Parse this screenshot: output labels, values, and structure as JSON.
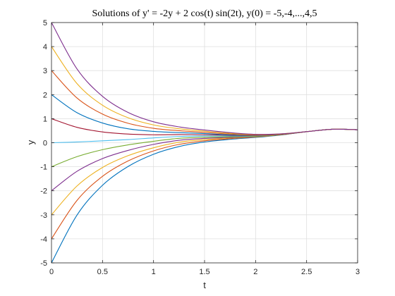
{
  "chart_data": {
    "type": "line",
    "title": "Solutions of y' = -2y + 2 cos(t) sin(2t), y(0) = -5,-4,...,4,5",
    "xlabel": "t",
    "ylabel": "y",
    "xlim": [
      0,
      3
    ],
    "ylim": [
      -5,
      5
    ],
    "xticks": [
      0,
      0.5,
      1,
      1.5,
      2,
      2.5,
      3
    ],
    "xtick_labels": [
      "0",
      "0.5",
      "1",
      "1.5",
      "2",
      "2.5",
      "3"
    ],
    "yticks": [
      -5,
      -4,
      -3,
      -2,
      -1,
      0,
      1,
      2,
      3,
      4,
      5
    ],
    "ytick_labels": [
      "-5",
      "-4",
      "-3",
      "-2",
      "-1",
      "0",
      "1",
      "2",
      "3",
      "4",
      "5"
    ],
    "grid": true,
    "x": [
      0,
      0.25,
      0.5,
      0.75,
      1,
      1.25,
      1.5,
      1.75,
      2,
      2.25,
      2.5,
      2.75,
      3
    ],
    "series": [
      {
        "initial_value": -5,
        "color": "#0072BD",
        "values": [
          -5,
          -3.01,
          -1.77,
          -0.99,
          -0.48,
          -0.16,
          0.03,
          0.14,
          0.22,
          0.32,
          0.46,
          0.56,
          0.54
        ]
      },
      {
        "initial_value": -4,
        "color": "#D95319",
        "values": [
          -4,
          -2.4,
          -1.4,
          -0.76,
          -0.34,
          -0.07,
          0.08,
          0.17,
          0.24,
          0.33,
          0.46,
          0.56,
          0.54
        ]
      },
      {
        "initial_value": -3,
        "color": "#EDB120",
        "values": [
          -3,
          -1.8,
          -1.03,
          -0.54,
          -0.21,
          0.02,
          0.13,
          0.2,
          0.25,
          0.33,
          0.46,
          0.56,
          0.54
        ]
      },
      {
        "initial_value": -2,
        "color": "#7E2F8E",
        "values": [
          -2,
          -1.19,
          -0.66,
          -0.32,
          -0.07,
          0.1,
          0.18,
          0.22,
          0.26,
          0.34,
          0.46,
          0.56,
          0.54
        ]
      },
      {
        "initial_value": -1,
        "color": "#77AC30",
        "values": [
          -1,
          -0.58,
          -0.29,
          -0.09,
          0.06,
          0.18,
          0.23,
          0.25,
          0.27,
          0.34,
          0.46,
          0.56,
          0.54
        ]
      },
      {
        "initial_value": 0,
        "color": "#4DBEEE",
        "values": [
          0,
          0.03,
          0.08,
          0.13,
          0.2,
          0.26,
          0.28,
          0.28,
          0.29,
          0.35,
          0.46,
          0.56,
          0.54
        ]
      },
      {
        "initial_value": 1,
        "color": "#A2142F",
        "values": [
          1,
          0.64,
          0.45,
          0.36,
          0.33,
          0.34,
          0.33,
          0.31,
          0.3,
          0.35,
          0.46,
          0.56,
          0.54
        ]
      },
      {
        "initial_value": 2,
        "color": "#0072BD",
        "values": [
          2,
          1.25,
          0.82,
          0.58,
          0.47,
          0.42,
          0.38,
          0.33,
          0.31,
          0.36,
          0.46,
          0.56,
          0.54
        ]
      },
      {
        "initial_value": 3,
        "color": "#D95319",
        "values": [
          3,
          1.86,
          1.19,
          0.81,
          0.6,
          0.5,
          0.43,
          0.36,
          0.32,
          0.36,
          0.46,
          0.56,
          0.54
        ]
      },
      {
        "initial_value": 4,
        "color": "#EDB120",
        "values": [
          4,
          2.46,
          1.56,
          1.04,
          0.74,
          0.58,
          0.48,
          0.39,
          0.34,
          0.37,
          0.46,
          0.56,
          0.54
        ]
      },
      {
        "initial_value": 5,
        "color": "#7E2F8E",
        "values": [
          5,
          3.07,
          1.93,
          1.26,
          0.87,
          0.66,
          0.53,
          0.42,
          0.35,
          0.37,
          0.46,
          0.56,
          0.54
        ]
      }
    ]
  }
}
